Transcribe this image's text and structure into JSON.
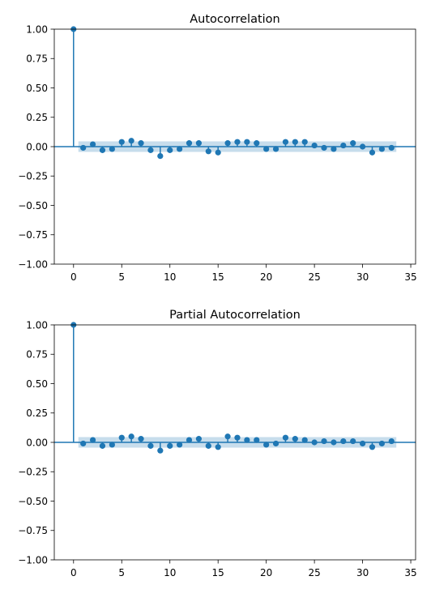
{
  "chart_data": [
    {
      "type": "stem",
      "title": "Autocorrelation",
      "xlabel": "",
      "ylabel": "",
      "xlim": [
        -2,
        35.5
      ],
      "ylim": [
        -1.0,
        1.0
      ],
      "xticks": [
        0,
        5,
        10,
        15,
        20,
        25,
        30,
        35
      ],
      "xtick_labels": [
        "0",
        "5",
        "10",
        "15",
        "20",
        "25",
        "30",
        "35"
      ],
      "yticks": [
        -1.0,
        -0.75,
        -0.5,
        -0.25,
        0.0,
        0.25,
        0.5,
        0.75,
        1.0
      ],
      "ytick_labels": [
        "−1.00",
        "−0.75",
        "−0.50",
        "−0.25",
        "0.00",
        "0.25",
        "0.50",
        "0.75",
        "1.00"
      ],
      "confidence_band": 0.045,
      "x": [
        0,
        1,
        2,
        3,
        4,
        5,
        6,
        7,
        8,
        9,
        10,
        11,
        12,
        13,
        14,
        15,
        16,
        17,
        18,
        19,
        20,
        21,
        22,
        23,
        24,
        25,
        26,
        27,
        28,
        29,
        30,
        31,
        32,
        33
      ],
      "values": [
        1.0,
        -0.01,
        0.02,
        -0.03,
        -0.02,
        0.04,
        0.05,
        0.03,
        -0.03,
        -0.08,
        -0.03,
        -0.02,
        0.03,
        0.03,
        -0.04,
        -0.05,
        0.03,
        0.04,
        0.04,
        0.03,
        -0.02,
        -0.02,
        0.04,
        0.04,
        0.04,
        0.01,
        -0.01,
        -0.02,
        0.01,
        0.03,
        0.0,
        -0.05,
        -0.02,
        -0.01
      ],
      "grid": false,
      "color": "#1f77b4"
    },
    {
      "type": "stem",
      "title": "Partial Autocorrelation",
      "xlabel": "",
      "ylabel": "",
      "xlim": [
        -2,
        35.5
      ],
      "ylim": [
        -1.0,
        1.0
      ],
      "xticks": [
        0,
        5,
        10,
        15,
        20,
        25,
        30,
        35
      ],
      "xtick_labels": [
        "0",
        "5",
        "10",
        "15",
        "20",
        "25",
        "30",
        "35"
      ],
      "yticks": [
        -1.0,
        -0.75,
        -0.5,
        -0.25,
        0.0,
        0.25,
        0.5,
        0.75,
        1.0
      ],
      "ytick_labels": [
        "−1.00",
        "−0.75",
        "−0.50",
        "−0.25",
        "0.00",
        "0.25",
        "0.50",
        "0.75",
        "1.00"
      ],
      "confidence_band": 0.045,
      "x": [
        0,
        1,
        2,
        3,
        4,
        5,
        6,
        7,
        8,
        9,
        10,
        11,
        12,
        13,
        14,
        15,
        16,
        17,
        18,
        19,
        20,
        21,
        22,
        23,
        24,
        25,
        26,
        27,
        28,
        29,
        30,
        31,
        32,
        33
      ],
      "values": [
        1.0,
        -0.01,
        0.02,
        -0.03,
        -0.02,
        0.04,
        0.05,
        0.03,
        -0.03,
        -0.07,
        -0.03,
        -0.02,
        0.02,
        0.03,
        -0.03,
        -0.04,
        0.05,
        0.04,
        0.02,
        0.02,
        -0.02,
        -0.01,
        0.04,
        0.03,
        0.02,
        0.0,
        0.01,
        0.0,
        0.01,
        0.01,
        -0.01,
        -0.04,
        -0.01,
        0.01
      ],
      "grid": false,
      "color": "#1f77b4"
    }
  ]
}
